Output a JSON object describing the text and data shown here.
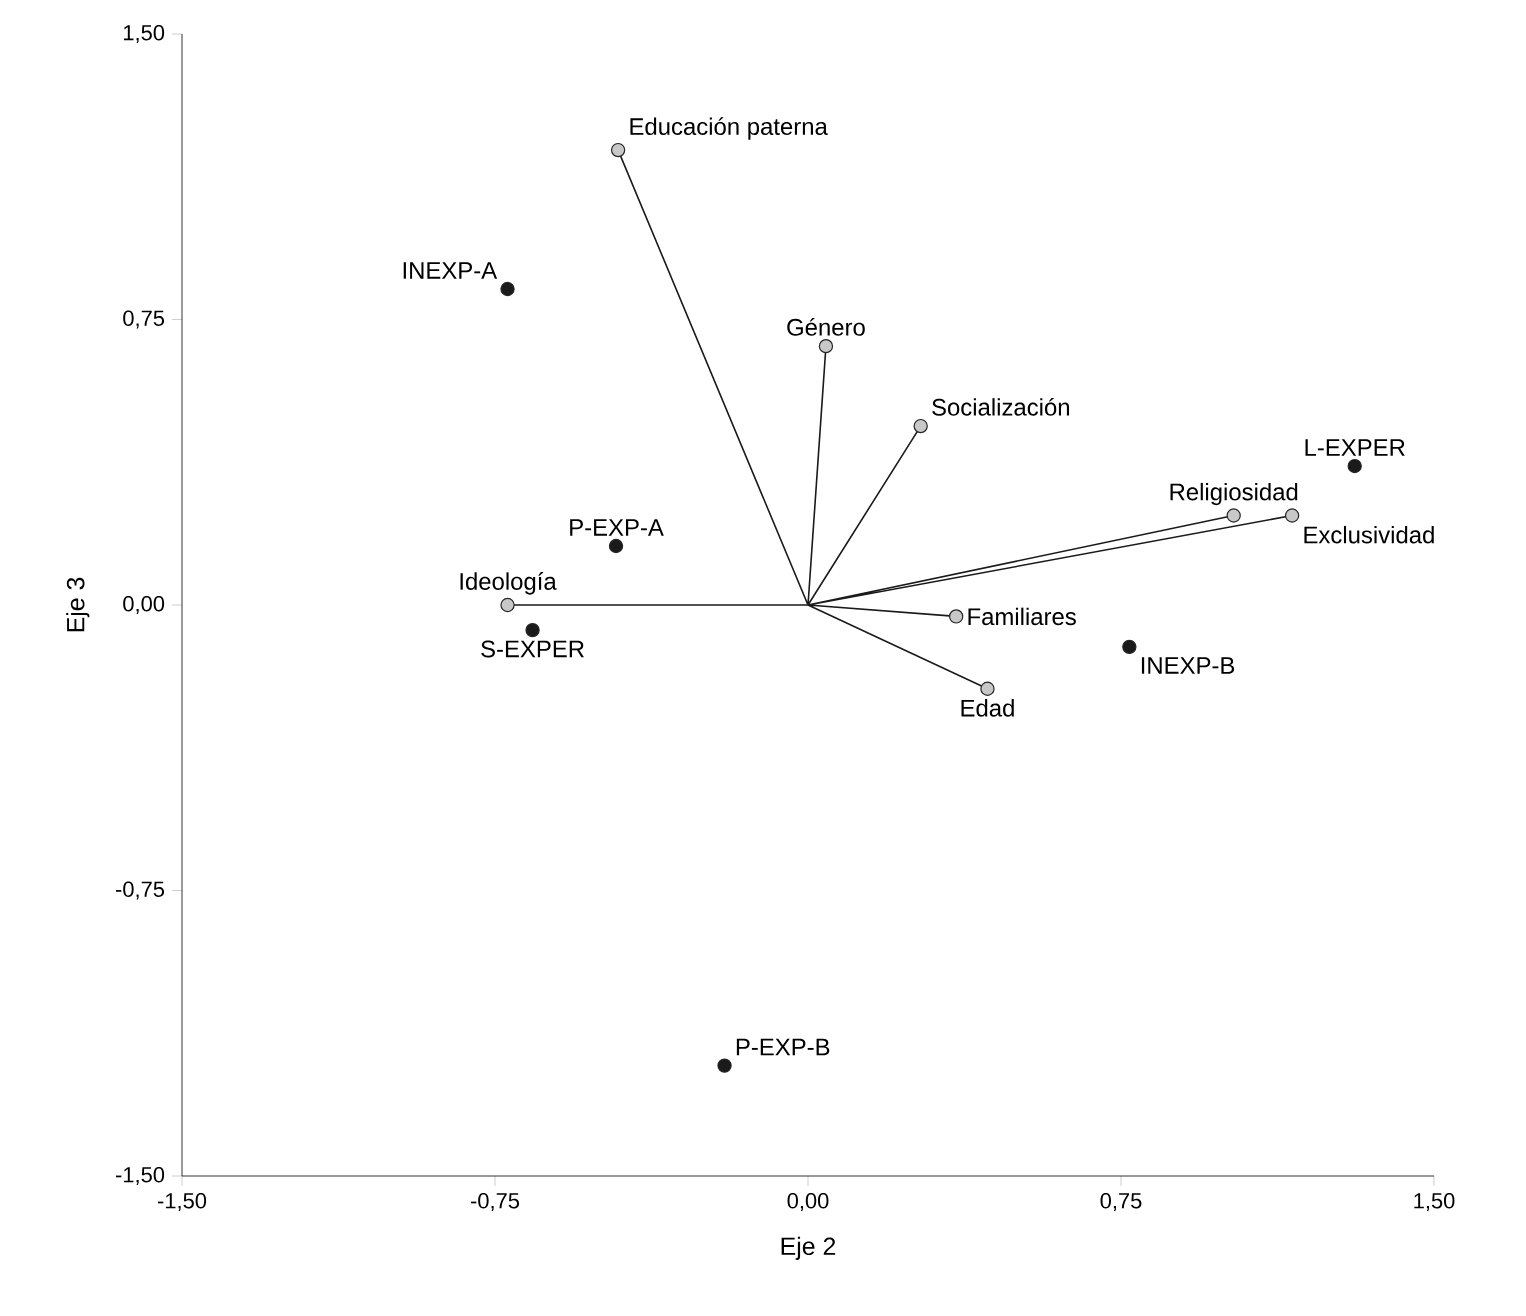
{
  "chart_data": {
    "type": "scatter",
    "xlabel": "Eje 2",
    "ylabel": "Eje 3",
    "xlim": [
      -1.5,
      1.5
    ],
    "ylim": [
      -1.5,
      1.5
    ],
    "xticks": [
      {
        "value": -1.5,
        "label": "-1,50"
      },
      {
        "value": -0.75,
        "label": "-0,75"
      },
      {
        "value": 0,
        "label": "0,00"
      },
      {
        "value": 0.75,
        "label": "0,75"
      },
      {
        "value": 1.5,
        "label": "1,50"
      }
    ],
    "yticks": [
      {
        "value": -1.5,
        "label": "-1,50"
      },
      {
        "value": -0.75,
        "label": "-0,75"
      },
      {
        "value": 0,
        "label": "0,00"
      },
      {
        "value": 0.75,
        "label": "0,75"
      },
      {
        "value": 1.5,
        "label": "1,50"
      }
    ],
    "grid": false,
    "series": [
      {
        "type": "line",
        "color": "#1a1a1a",
        "marker": "none",
        "x": [
          -0.455,
          0,
          0.043,
          0,
          0.27,
          0,
          1.02,
          0,
          1.16,
          0,
          0.355,
          0,
          0.43,
          0,
          -0.72
        ],
        "values": [
          1.195,
          0,
          0.68,
          0,
          0.47,
          0,
          0.235,
          0,
          0.235,
          0,
          -0.03,
          0,
          -0.22,
          0,
          0.0
        ]
      },
      {
        "color": "#c8c8c8",
        "marker": "circle",
        "x": [
          -0.455,
          0.043,
          0.27,
          1.02,
          1.16,
          0.355,
          0.43,
          -0.72
        ],
        "values": [
          1.195,
          0.68,
          0.47,
          0.235,
          0.235,
          -0.03,
          -0.22,
          0.0
        ]
      },
      {
        "color": "#1a1a1a",
        "marker": "circle",
        "x": [
          -0.72,
          -0.46,
          -0.66,
          -0.2,
          0.77,
          1.31
        ],
        "values": [
          0.83,
          0.155,
          -0.066,
          -1.21,
          -0.11,
          0.365
        ]
      }
    ],
    "annotations": [
      {
        "text": "INEXP-A",
        "x": -0.72,
        "y": 0.83
      },
      {
        "text": "P-EXP-A",
        "x": -0.46,
        "y": 0.155
      },
      {
        "text": "S-EXPER",
        "x": -0.66,
        "y": -0.066
      },
      {
        "text": "P-EXP-B",
        "x": -0.2,
        "y": -1.21
      },
      {
        "text": "INEXP-B",
        "x": 0.77,
        "y": -0.11
      },
      {
        "text": "L-EXPER",
        "x": 1.31,
        "y": 0.365
      },
      {
        "text": "Educación paterna",
        "x": -0.455,
        "y": 1.195
      },
      {
        "text": "Género",
        "x": 0.043,
        "y": 0.68
      },
      {
        "text": "Socialización",
        "x": 0.27,
        "y": 0.47
      },
      {
        "text": "Religiosidad",
        "x": 1.02,
        "y": 0.235
      },
      {
        "text": "Exclusividad",
        "x": 1.16,
        "y": 0.235
      },
      {
        "text": "Familiares",
        "x": 0.355,
        "y": -0.03
      },
      {
        "text": "Edad",
        "x": 0.43,
        "y": -0.22
      },
      {
        "text": "Ideología",
        "x": -0.72,
        "y": 0.0
      }
    ]
  }
}
